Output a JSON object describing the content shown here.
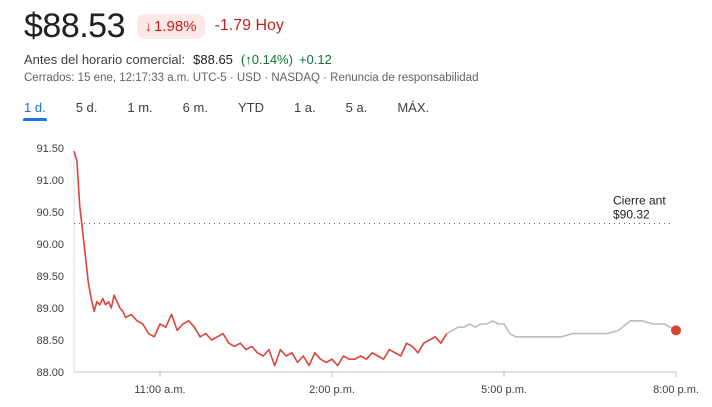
{
  "quote": {
    "price": "$88.53",
    "change_pct": "1.98%",
    "change_abs": "-1.79 Hoy",
    "arrow_icon": "arrow-down-icon"
  },
  "premarket": {
    "label": "Antes del horario comercial:",
    "price": "$88.65",
    "open_paren": "(",
    "arrow": "↑",
    "pct": "0.14%",
    "close_paren": ")",
    "abs": "+0.12"
  },
  "meta_text": "Cerrados: 15 ene, 12:17:33 a.m. UTC-5 · USD · NASDAQ · Renuncia de responsabilidad",
  "tabs": [
    {
      "label": "1 d.",
      "active": true
    },
    {
      "label": "5 d."
    },
    {
      "label": "1 m."
    },
    {
      "label": "6 m."
    },
    {
      "label": "YTD"
    },
    {
      "label": "1 a."
    },
    {
      "label": "5 a."
    },
    {
      "label": "MÁX."
    }
  ],
  "colors": {
    "down": "#db4437",
    "extended": "#bdbdbd",
    "accent": "#1a73e8"
  },
  "chart_data": {
    "type": "line",
    "ylim": [
      88.0,
      91.5
    ],
    "y_ticks": [
      {
        "value": 91.5,
        "label": "91.50"
      },
      {
        "value": 91.0,
        "label": "91.00"
      },
      {
        "value": 90.5,
        "label": "90.50"
      },
      {
        "value": 90.0,
        "label": "90.00"
      },
      {
        "value": 89.5,
        "label": "89.50"
      },
      {
        "value": 89.0,
        "label": "89.00"
      },
      {
        "value": 88.5,
        "label": "88.50"
      },
      {
        "value": 88.0,
        "label": "88.00"
      }
    ],
    "x_ticks": [
      {
        "value": 11.0,
        "label": "11:00 a.m."
      },
      {
        "value": 14.0,
        "label": "2:00 p.m."
      },
      {
        "value": 17.0,
        "label": "5:00 p.m."
      },
      {
        "value": 20.0,
        "label": "8:00 p.m."
      }
    ],
    "xlim": [
      9.5,
      20.0
    ],
    "previous_close": {
      "value": 90.32,
      "label_top": "Cierre ant",
      "label_bottom": "$90.32"
    },
    "series": [
      {
        "session": "regular",
        "points": [
          [
            9.5,
            91.45
          ],
          [
            9.55,
            91.3
          ],
          [
            9.6,
            90.6
          ],
          [
            9.65,
            90.2
          ],
          [
            9.7,
            89.8
          ],
          [
            9.75,
            89.4
          ],
          [
            9.8,
            89.15
          ],
          [
            9.85,
            88.95
          ],
          [
            9.9,
            89.1
          ],
          [
            9.95,
            89.05
          ],
          [
            10.0,
            89.15
          ],
          [
            10.05,
            89.05
          ],
          [
            10.1,
            89.1
          ],
          [
            10.15,
            89.0
          ],
          [
            10.2,
            89.2
          ],
          [
            10.25,
            89.1
          ],
          [
            10.3,
            89.0
          ],
          [
            10.35,
            88.95
          ],
          [
            10.4,
            88.85
          ],
          [
            10.5,
            88.9
          ],
          [
            10.6,
            88.8
          ],
          [
            10.7,
            88.75
          ],
          [
            10.8,
            88.6
          ],
          [
            10.9,
            88.55
          ],
          [
            11.0,
            88.75
          ],
          [
            11.1,
            88.7
          ],
          [
            11.2,
            88.9
          ],
          [
            11.3,
            88.65
          ],
          [
            11.4,
            88.75
          ],
          [
            11.5,
            88.8
          ],
          [
            11.6,
            88.7
          ],
          [
            11.7,
            88.55
          ],
          [
            11.8,
            88.6
          ],
          [
            11.9,
            88.5
          ],
          [
            12.0,
            88.55
          ],
          [
            12.1,
            88.6
          ],
          [
            12.2,
            88.45
          ],
          [
            12.3,
            88.4
          ],
          [
            12.4,
            88.45
          ],
          [
            12.5,
            88.35
          ],
          [
            12.6,
            88.4
          ],
          [
            12.7,
            88.3
          ],
          [
            12.8,
            88.25
          ],
          [
            12.9,
            88.35
          ],
          [
            13.0,
            88.1
          ],
          [
            13.1,
            88.35
          ],
          [
            13.2,
            88.25
          ],
          [
            13.3,
            88.3
          ],
          [
            13.4,
            88.15
          ],
          [
            13.5,
            88.25
          ],
          [
            13.6,
            88.1
          ],
          [
            13.7,
            88.3
          ],
          [
            13.8,
            88.2
          ],
          [
            13.9,
            88.15
          ],
          [
            14.0,
            88.2
          ],
          [
            14.1,
            88.1
          ],
          [
            14.2,
            88.25
          ],
          [
            14.3,
            88.2
          ],
          [
            14.4,
            88.2
          ],
          [
            14.5,
            88.25
          ],
          [
            14.6,
            88.2
          ],
          [
            14.7,
            88.3
          ],
          [
            14.8,
            88.25
          ],
          [
            14.9,
            88.2
          ],
          [
            15.0,
            88.35
          ],
          [
            15.1,
            88.3
          ],
          [
            15.2,
            88.25
          ],
          [
            15.3,
            88.45
          ],
          [
            15.4,
            88.4
          ],
          [
            15.5,
            88.3
          ],
          [
            15.6,
            88.45
          ],
          [
            15.7,
            88.5
          ],
          [
            15.8,
            88.55
          ],
          [
            15.9,
            88.45
          ],
          [
            16.0,
            88.6
          ]
        ]
      },
      {
        "session": "extended",
        "points": [
          [
            16.0,
            88.6
          ],
          [
            16.1,
            88.65
          ],
          [
            16.2,
            88.7
          ],
          [
            16.3,
            88.7
          ],
          [
            16.4,
            88.75
          ],
          [
            16.5,
            88.7
          ],
          [
            16.6,
            88.75
          ],
          [
            16.7,
            88.75
          ],
          [
            16.8,
            88.8
          ],
          [
            16.9,
            88.75
          ],
          [
            17.0,
            88.75
          ],
          [
            17.1,
            88.6
          ],
          [
            17.2,
            88.55
          ],
          [
            17.4,
            88.55
          ],
          [
            17.6,
            88.55
          ],
          [
            17.8,
            88.55
          ],
          [
            18.0,
            88.55
          ],
          [
            18.2,
            88.6
          ],
          [
            18.4,
            88.6
          ],
          [
            18.6,
            88.6
          ],
          [
            18.8,
            88.6
          ],
          [
            19.0,
            88.65
          ],
          [
            19.2,
            88.8
          ],
          [
            19.4,
            88.8
          ],
          [
            19.6,
            88.75
          ],
          [
            19.8,
            88.75
          ],
          [
            20.0,
            88.65
          ]
        ]
      }
    ],
    "last_point": {
      "x": 20.0,
      "y": 88.65
    }
  }
}
